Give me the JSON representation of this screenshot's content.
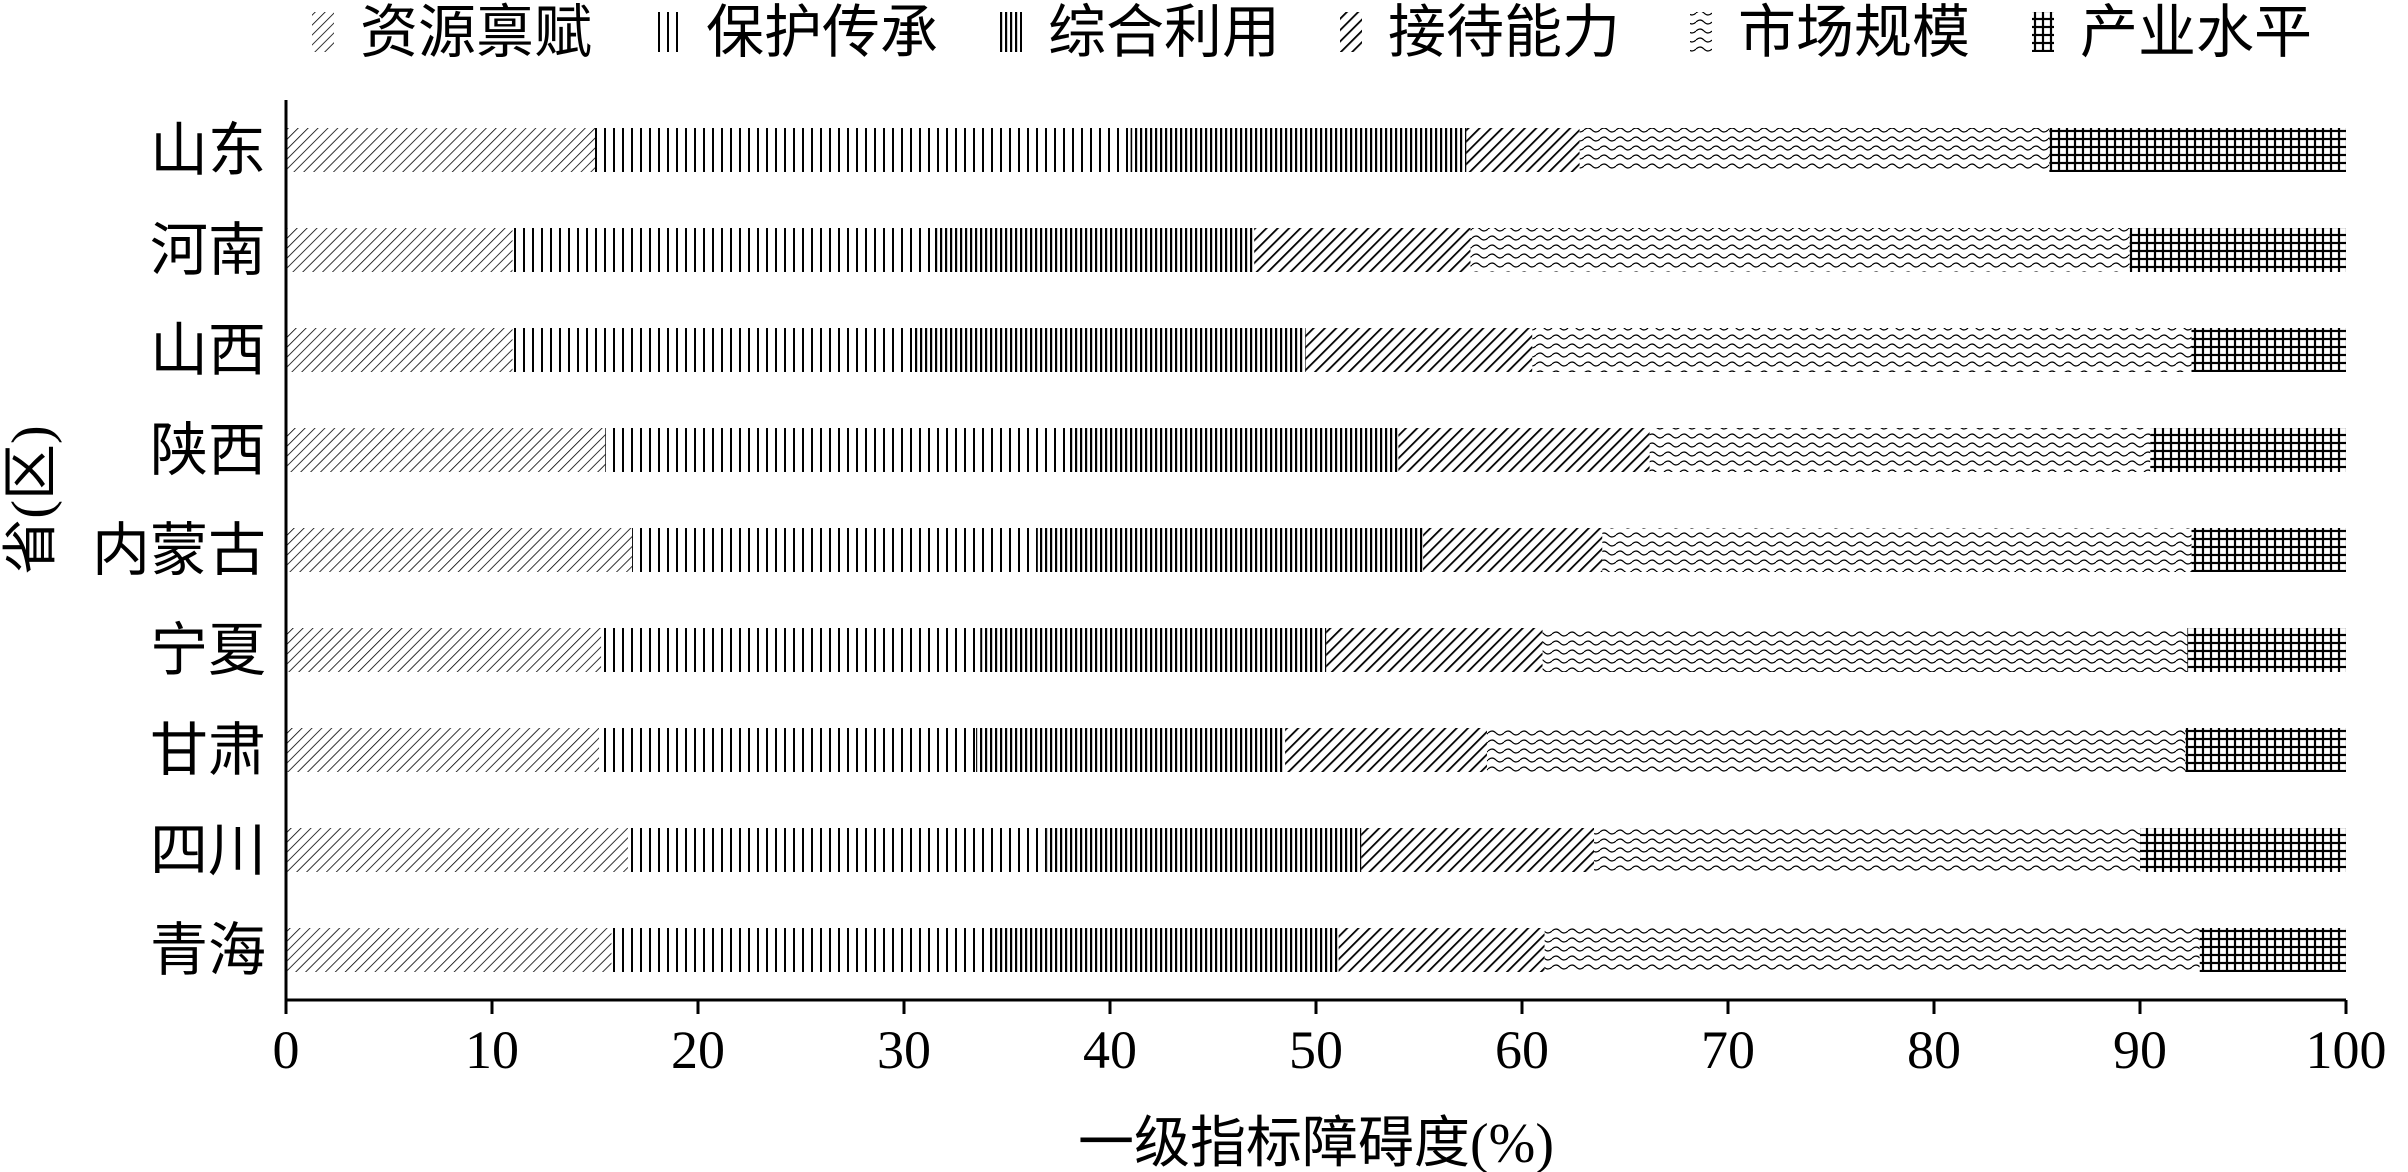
{
  "chart_data": {
    "type": "bar",
    "orientation": "horizontal",
    "stacked": true,
    "title": "",
    "xlabel": "一级指标障碍度(%)",
    "ylabel": "省(区)",
    "xlim": [
      0,
      100
    ],
    "xticks": [
      "0",
      "10",
      "20",
      "30",
      "40",
      "50",
      "60",
      "70",
      "80",
      "90",
      "100"
    ],
    "grid": false,
    "legend_position": "top",
    "categories": [
      "山东",
      "河南",
      "山西",
      "陕西",
      "内蒙古",
      "宁夏",
      "甘肃",
      "四川",
      "青海"
    ],
    "series": [
      {
        "name": "资源禀赋",
        "pattern": "diagonal-fine",
        "values": [
          15.0,
          11.0,
          11.0,
          15.5,
          16.8,
          15.3,
          15.2,
          16.6,
          15.8
        ]
      },
      {
        "name": "保护传承",
        "pattern": "vertical-lines",
        "values": [
          26.0,
          20.5,
          19.5,
          22.5,
          19.7,
          18.4,
          18.3,
          20.3,
          18.3
        ]
      },
      {
        "name": "综合利用",
        "pattern": "vertical-dense",
        "values": [
          16.3,
          15.5,
          19.0,
          16.0,
          18.7,
          16.8,
          15.0,
          15.3,
          17.0
        ]
      },
      {
        "name": "接待能力",
        "pattern": "diagonal-bold",
        "values": [
          5.5,
          10.5,
          11.0,
          12.2,
          8.7,
          10.5,
          9.8,
          11.3,
          10.0
        ]
      },
      {
        "name": "市场规模",
        "pattern": "wavy",
        "values": [
          22.8,
          32.0,
          32.0,
          24.3,
          28.6,
          31.3,
          33.9,
          26.5,
          31.8
        ]
      },
      {
        "name": "产业水平",
        "pattern": "grid",
        "values": [
          14.4,
          10.5,
          7.5,
          9.5,
          7.5,
          7.7,
          7.8,
          10.0,
          7.1
        ]
      }
    ]
  }
}
